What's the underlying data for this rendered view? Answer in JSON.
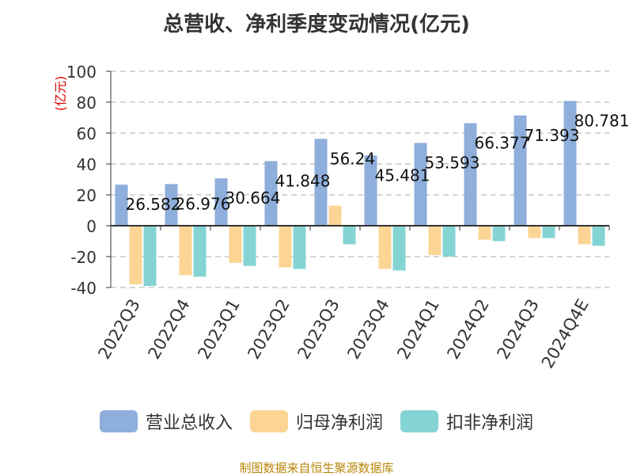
{
  "chart_data": {
    "type": "bar",
    "title": "总营收、净利季度变动情况(亿元)",
    "ylabel": "(亿元)",
    "ylim": [
      -40,
      100
    ],
    "yticks": [
      100,
      80,
      60,
      40,
      20,
      0,
      -20,
      -40
    ],
    "grid": true,
    "legend_position": "bottom",
    "categories": [
      "2022Q3",
      "2022Q4",
      "2023Q1",
      "2023Q2",
      "2023Q3",
      "2023Q4",
      "2024Q1",
      "2024Q2",
      "2024Q3",
      "2024Q4E"
    ],
    "series": [
      {
        "name": "营业总收入",
        "color": "#8eaedb",
        "values": [
          26.582,
          26.976,
          30.664,
          41.848,
          56.24,
          45.481,
          53.593,
          66.377,
          71.393,
          80.781
        ],
        "labels": [
          "26.582",
          "26.976",
          "30.664",
          "41.848",
          "56.24",
          "45.481",
          "53.593",
          "66.377",
          "71.393",
          "80.781"
        ]
      },
      {
        "name": "归母净利润",
        "color": "#fcd595",
        "values": [
          -38,
          -32,
          -24,
          -27,
          13,
          -28,
          -19,
          -9,
          -8,
          -12
        ]
      },
      {
        "name": "扣非净利润",
        "color": "#85d4d4",
        "values": [
          -39,
          -33,
          -26,
          -28,
          -12,
          -29,
          -20,
          -10,
          -8,
          -13
        ]
      }
    ]
  },
  "source": "制图数据来自恒生聚源数据库"
}
